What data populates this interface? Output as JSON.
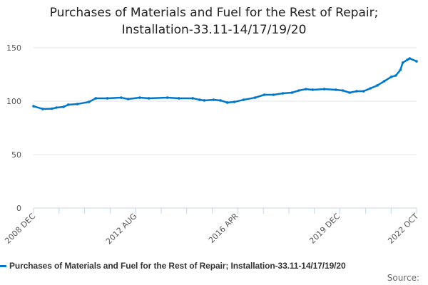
{
  "chart_data": {
    "type": "line",
    "title_lines": [
      "Purchases of Materials and Fuel for the Rest of Repair;",
      "Installation-33.11-14/17/19/20"
    ],
    "xlabel": "",
    "ylabel": "",
    "ylim": [
      0,
      150
    ],
    "yticks": [
      "0",
      "50",
      "100",
      "150"
    ],
    "xrange": [
      "2008-12",
      "2022-10"
    ],
    "xtick_labels": [
      {
        "label": "2008 DEC",
        "date": "2008-12"
      },
      {
        "label": "2012 AUG",
        "date": "2012-08"
      },
      {
        "label": "2016 APR",
        "date": "2016-04"
      },
      {
        "label": "2019 DEC",
        "date": "2019-12"
      },
      {
        "label": "2022 OCT",
        "date": "2022-10"
      }
    ],
    "grid": true,
    "legend_position": "bottom",
    "series": [
      {
        "name": "Purchases of Materials and Fuel for the Rest of Repair; Installation-33.11-14/17/19/20",
        "color": "#0077c8",
        "dates": [
          "2008-12",
          "2009-04",
          "2009-08",
          "2009-10",
          "2010-01",
          "2010-03",
          "2010-07",
          "2010-12",
          "2011-03",
          "2011-08",
          "2012-02",
          "2012-05",
          "2012-10",
          "2013-02",
          "2013-10",
          "2014-03",
          "2014-09",
          "2014-12",
          "2015-02",
          "2015-06",
          "2015-09",
          "2015-12",
          "2016-03",
          "2016-07",
          "2016-12",
          "2017-04",
          "2017-08",
          "2017-12",
          "2018-04",
          "2018-07",
          "2018-10",
          "2019-01",
          "2019-06",
          "2019-11",
          "2020-02",
          "2020-05",
          "2020-08",
          "2020-11",
          "2021-02",
          "2021-05",
          "2021-08",
          "2021-11",
          "2022-01",
          "2022-03",
          "2022-04",
          "2022-06",
          "2022-07",
          "2022-10"
        ],
        "values": [
          95.3,
          92.7,
          93.0,
          94.0,
          94.7,
          96.7,
          97.3,
          99.3,
          102.7,
          102.7,
          103.3,
          102.0,
          103.3,
          102.7,
          103.3,
          102.7,
          102.7,
          101.3,
          100.7,
          101.3,
          100.7,
          98.7,
          99.3,
          101.3,
          103.3,
          106.0,
          106.0,
          107.3,
          108.0,
          110.0,
          111.3,
          110.7,
          111.3,
          110.7,
          110.0,
          108.0,
          109.3,
          109.3,
          112.0,
          114.7,
          118.7,
          122.7,
          124.0,
          129.3,
          136.0,
          138.7,
          140.0,
          137.3
        ]
      }
    ],
    "source_label": "Source:"
  }
}
